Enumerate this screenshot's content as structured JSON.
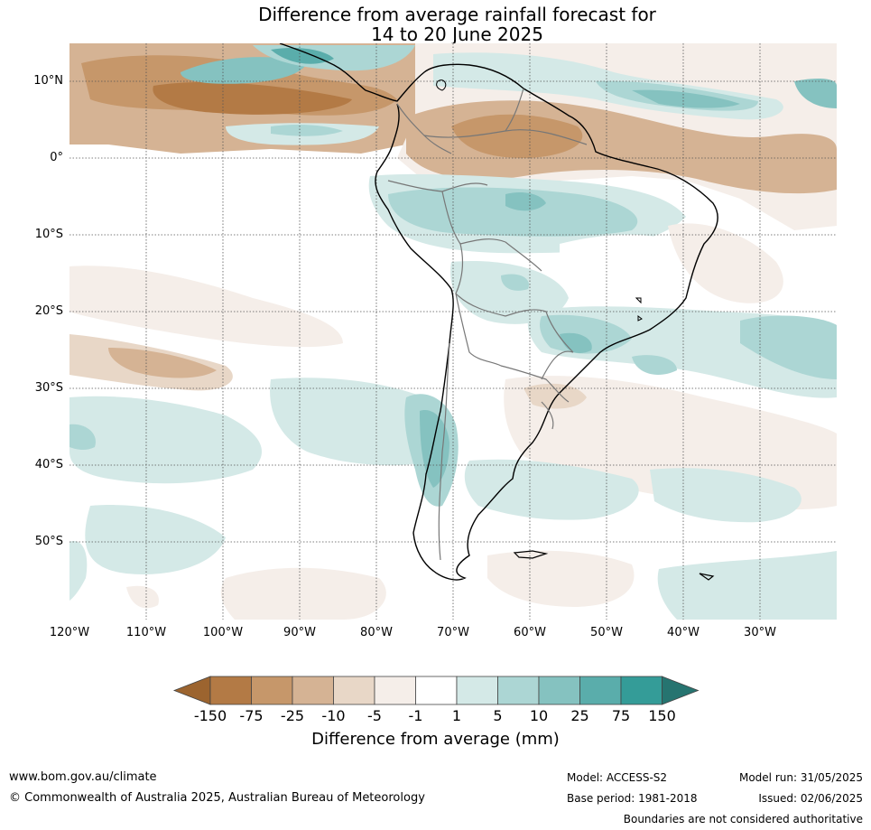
{
  "title_line1": "Difference from average rainfall forecast for",
  "title_line2": "14 to 20 June 2025",
  "lat_labels": [
    "10°N",
    "0°",
    "10°S",
    "20°S",
    "30°S",
    "40°S",
    "50°S"
  ],
  "lon_labels": [
    "120°W",
    "110°W",
    "100°W",
    "90°W",
    "80°W",
    "70°W",
    "60°W",
    "50°W",
    "40°W",
    "30°W"
  ],
  "colorbar": {
    "ticks": [
      "-150",
      "-75",
      "-25",
      "-10",
      "-5",
      "-1",
      "1",
      "5",
      "10",
      "25",
      "75",
      "150"
    ],
    "colors": [
      "#9c642f",
      "#b37a45",
      "#c6976a",
      "#d5b394",
      "#e8d7c7",
      "#f5eee9",
      "#ffffff",
      "#d4e9e7",
      "#acd6d4",
      "#85c2c0",
      "#5aadab",
      "#349c98",
      "#267470"
    ],
    "label": "Difference from average (mm)"
  },
  "footer": {
    "website": "www.bom.gov.au/climate",
    "copyright": "© Commonwealth of Australia 2025, Australian Bureau of Meteorology",
    "model": "Model: ACCESS-S2",
    "base_period": "Base period: 1981-2018",
    "model_run": "Model run: 31/05/2025",
    "issued": "Issued: 02/06/2025",
    "disclaimer": "Boundaries are not considered authoritative"
  }
}
